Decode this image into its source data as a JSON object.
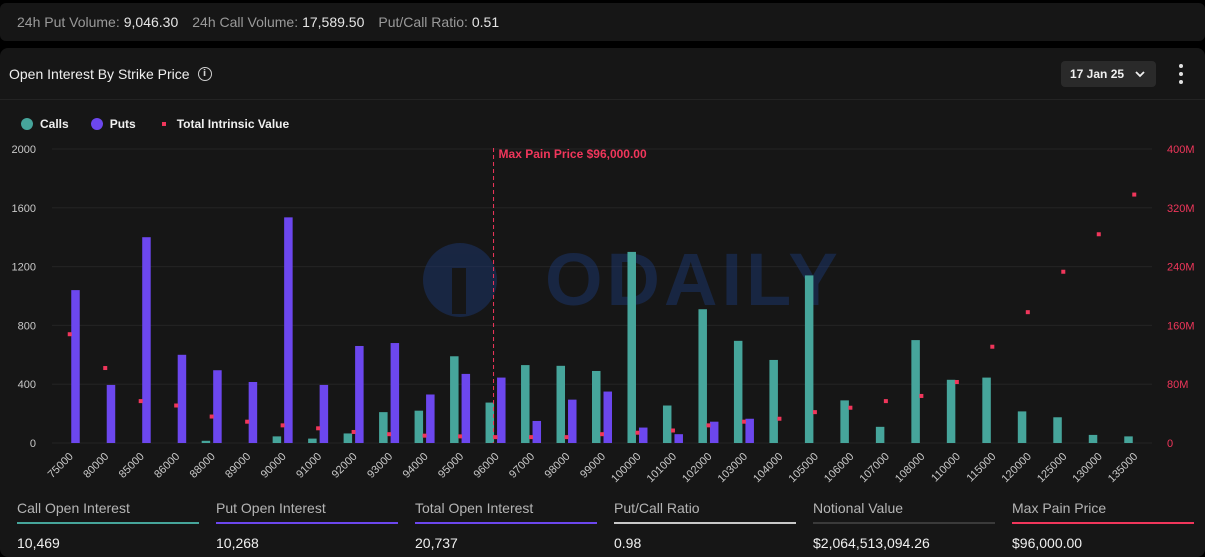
{
  "top_stats": [
    {
      "label": "24h Put Volume:",
      "value": "9,046.30"
    },
    {
      "label": "24h Call Volume:",
      "value": "17,589.50"
    },
    {
      "label": "Put/Call Ratio:",
      "value": "0.51"
    }
  ],
  "panel": {
    "title": "Open Interest By Strike Price",
    "date_selected": "17 Jan 25",
    "watermark": "ODAILY"
  },
  "legend": {
    "calls": "Calls",
    "puts": "Puts",
    "intrinsic": "Total Intrinsic Value"
  },
  "colors": {
    "calls": "#46a59b",
    "puts": "#6c47ee",
    "intrinsic": "#f0365b",
    "grid": "#242424"
  },
  "chart_data": {
    "type": "bar",
    "categories": [
      "75000",
      "80000",
      "85000",
      "86000",
      "88000",
      "89000",
      "90000",
      "91000",
      "92000",
      "93000",
      "94000",
      "95000",
      "96000",
      "97000",
      "98000",
      "99000",
      "100000",
      "101000",
      "102000",
      "103000",
      "104000",
      "105000",
      "106000",
      "107000",
      "108000",
      "110000",
      "115000",
      "120000",
      "125000",
      "130000",
      "135000"
    ],
    "series": [
      {
        "name": "Calls",
        "axis": "left",
        "values": [
          0,
          0,
          0,
          0,
          15,
          0,
          45,
          30,
          65,
          210,
          220,
          590,
          275,
          530,
          525,
          490,
          1300,
          255,
          910,
          695,
          565,
          1140,
          290,
          110,
          700,
          430,
          445,
          215,
          175,
          55,
          45
        ]
      },
      {
        "name": "Puts",
        "axis": "left",
        "values": [
          1040,
          395,
          1400,
          600,
          495,
          415,
          1535,
          395,
          660,
          680,
          330,
          470,
          445,
          150,
          295,
          350,
          105,
          60,
          145,
          165,
          0,
          0,
          0,
          0,
          0,
          0,
          0,
          0,
          0,
          0,
          0
        ]
      },
      {
        "name": "Total Intrinsic Value",
        "axis": "right",
        "type": "scatter",
        "values": [
          148000000,
          102000000,
          57000000,
          51000000,
          36000000,
          29000000,
          24000000,
          20000000,
          15000000,
          12000000,
          10000000,
          9000000,
          8000000,
          8000000,
          8000000,
          12000000,
          14000000,
          17000000,
          24000000,
          29000000,
          33000000,
          42000000,
          48000000,
          57000000,
          64000000,
          83000000,
          131000000,
          178000000,
          233000000,
          284000000,
          338000000
        ]
      }
    ],
    "left_axis": {
      "ticks": [
        "0",
        "400",
        "800",
        "1200",
        "1600",
        "2000"
      ],
      "min": 0,
      "max": 2000
    },
    "right_axis": {
      "ticks": [
        "0",
        "80M",
        "160M",
        "240M",
        "320M",
        "400M"
      ],
      "min": 0,
      "max": 400000000
    },
    "annotation": {
      "label": "Max Pain Price $96,000.00",
      "category": "96000"
    },
    "grid": true,
    "legend_position": "top-left"
  },
  "bottom_stats": [
    {
      "label": "Call Open Interest",
      "value": "10,469",
      "color": "#46a59b"
    },
    {
      "label": "Put Open Interest",
      "value": "10,268",
      "color": "#6c47ee"
    },
    {
      "label": "Total Open Interest",
      "value": "20,737",
      "color": "#6c47ee"
    },
    {
      "label": "Put/Call Ratio",
      "value": "0.98",
      "color": "#c8c8c8"
    },
    {
      "label": "Notional Value",
      "value": "$2,064,513,094.26",
      "color": "#3a3a3a"
    },
    {
      "label": "Max Pain Price",
      "value": "$96,000.00",
      "color": "#f0365b"
    }
  ]
}
